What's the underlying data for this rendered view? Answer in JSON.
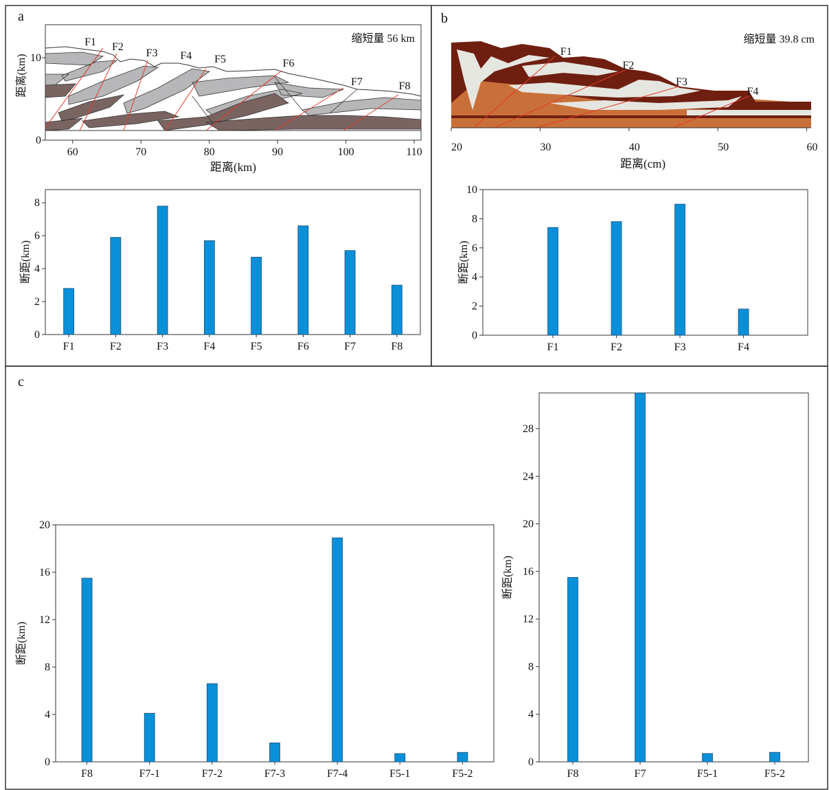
{
  "panels": {
    "a": {
      "letter": "a",
      "shortening": "缩短量  56 km"
    },
    "b": {
      "letter": "b",
      "shortening": "缩短量 39.8 cm"
    },
    "c": {
      "letter": "c"
    }
  },
  "colors": {
    "bar": "#0a90d8",
    "frame": "#333333",
    "fault_line": "#e03a2a",
    "layer_gray": "#b7b7b9",
    "layer_dark": "#7a6462",
    "sand_dark": "#6e1f10",
    "sand_light": "#e6e6e0",
    "sand_orange": "#c9703a"
  },
  "chart_data": [
    {
      "id": "a-section",
      "type": "diagram",
      "xlabel": "距离(km)",
      "ylabel": "距离(km)",
      "xlim": [
        56,
        111
      ],
      "ylim": [
        0,
        14
      ],
      "xticks": [
        60,
        70,
        80,
        90,
        100,
        110
      ],
      "yticks": [
        0,
        10
      ],
      "annotations": [
        "缩短量  56 km"
      ],
      "faults": [
        {
          "label": "F1",
          "x": 63
        },
        {
          "label": "F2",
          "x": 67
        },
        {
          "label": "F3",
          "x": 72
        },
        {
          "label": "F4",
          "x": 77
        },
        {
          "label": "F5",
          "x": 82
        },
        {
          "label": "F6",
          "x": 92
        },
        {
          "label": "F7",
          "x": 102
        },
        {
          "label": "F8",
          "x": 109
        }
      ]
    },
    {
      "id": "a-bars",
      "type": "bar",
      "ylabel": "断距(km)",
      "categories": [
        "F1",
        "F2",
        "F3",
        "F4",
        "F5",
        "F6",
        "F7",
        "F8"
      ],
      "values": [
        2.8,
        5.9,
        7.8,
        5.7,
        4.7,
        6.6,
        5.1,
        3.0
      ],
      "ylim": [
        0,
        8.8
      ],
      "yticks": [
        0,
        2,
        4,
        6,
        8
      ]
    },
    {
      "id": "b-section",
      "type": "diagram",
      "xlabel": "距离(cm)",
      "xlim": [
        20,
        60.5
      ],
      "xticks": [
        20,
        30,
        40,
        50,
        60
      ],
      "annotations": [
        "缩短量 39.8 cm"
      ],
      "faults": [
        {
          "label": "F1",
          "x": 32
        },
        {
          "label": "F2",
          "x": 39
        },
        {
          "label": "F3",
          "x": 45
        },
        {
          "label": "F4",
          "x": 53
        }
      ]
    },
    {
      "id": "b-bars",
      "type": "bar",
      "ylabel": "断距(km)",
      "categories": [
        "F1",
        "F2",
        "F3",
        "F4"
      ],
      "values": [
        7.4,
        7.8,
        9.0,
        1.8
      ],
      "ylim": [
        0,
        10
      ],
      "yticks": [
        0,
        2,
        4,
        6,
        8,
        10
      ]
    },
    {
      "id": "c-left",
      "type": "bar",
      "ylabel": "断距(km)",
      "categories": [
        "F8",
        "F7-1",
        "F7-2",
        "F7-3",
        "F7-4",
        "F5-1",
        "F5-2"
      ],
      "values": [
        15.5,
        4.1,
        6.6,
        1.6,
        18.9,
        0.7,
        0.8
      ],
      "ylim": [
        0,
        20
      ],
      "yticks": [
        0,
        4,
        8,
        12,
        16,
        20
      ]
    },
    {
      "id": "c-right",
      "type": "bar",
      "ylabel": "断距(km)",
      "categories": [
        "F8",
        "F7",
        "F5-1",
        "F5-2"
      ],
      "values": [
        15.5,
        31.0,
        0.7,
        0.8
      ],
      "ylim": [
        0,
        31.0
      ],
      "yticks": [
        0,
        4,
        8,
        12,
        16,
        20,
        24,
        28
      ]
    }
  ]
}
